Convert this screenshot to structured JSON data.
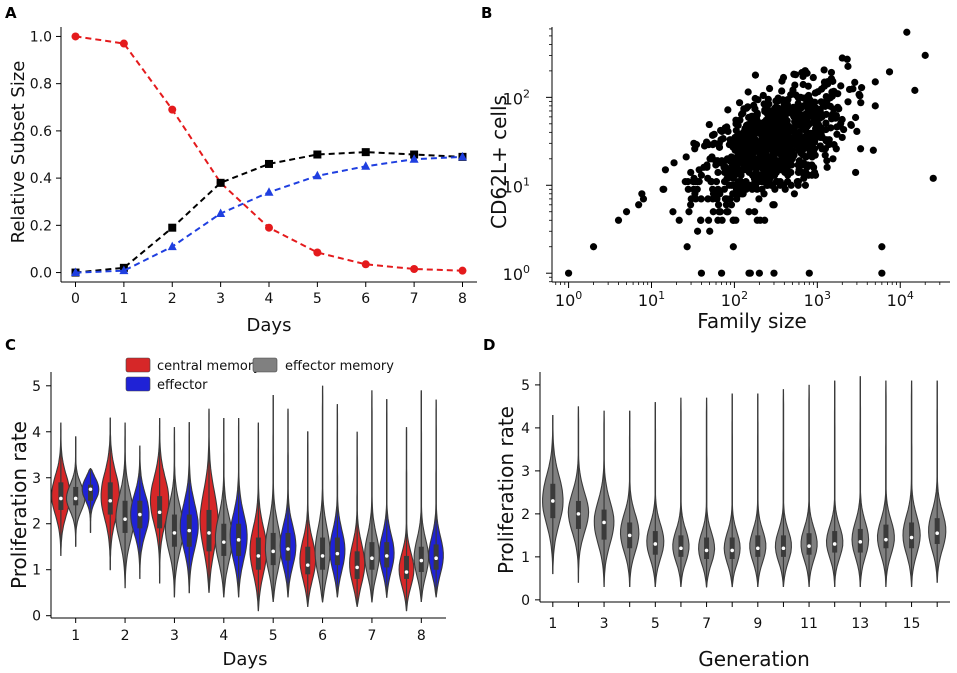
{
  "chart_data": [
    {
      "panel": "A",
      "type": "line",
      "xlabel": "Days",
      "ylabel": "Relative Subset Size",
      "x": [
        0,
        1,
        2,
        3,
        4,
        5,
        6,
        7,
        8
      ],
      "xticks": [
        "0",
        "1",
        "2",
        "3",
        "4",
        "5",
        "6",
        "7",
        "8"
      ],
      "yticks": [
        "0.0",
        "0.2",
        "0.4",
        "0.6",
        "0.8",
        "1.0"
      ],
      "xlim": [
        -0.3,
        8.3
      ],
      "ylim": [
        -0.04,
        1.04
      ],
      "series": [
        {
          "name": "central memory",
          "color": "#e41a1c",
          "marker": "circle",
          "values": [
            1.0,
            0.97,
            0.69,
            0.38,
            0.19,
            0.085,
            0.035,
            0.015,
            0.008
          ]
        },
        {
          "name": "effector memory",
          "color": "#000000",
          "marker": "square",
          "values": [
            0.0,
            0.02,
            0.19,
            0.38,
            0.46,
            0.5,
            0.51,
            0.5,
            0.49
          ]
        },
        {
          "name": "effector",
          "color": "#1f3fe0",
          "marker": "triangle",
          "values": [
            0.0,
            0.008,
            0.11,
            0.25,
            0.34,
            0.41,
            0.45,
            0.48,
            0.49
          ]
        }
      ]
    },
    {
      "panel": "B",
      "type": "scatter",
      "xlabel": "Family size",
      "ylabel": "CD62L+ cells",
      "xscale": "log",
      "yscale": "log",
      "xticks": [
        {
          "base": "10",
          "exp": "0"
        },
        {
          "base": "10",
          "exp": "1"
        },
        {
          "base": "10",
          "exp": "2"
        },
        {
          "base": "10",
          "exp": "3"
        },
        {
          "base": "10",
          "exp": "4"
        }
      ],
      "yticks": [
        {
          "base": "10",
          "exp": "0"
        },
        {
          "base": "10",
          "exp": "1"
        },
        {
          "base": "10",
          "exp": "2"
        }
      ],
      "xlim_log10": [
        -0.2,
        4.6
      ],
      "ylim_log10": [
        -0.1,
        2.8
      ],
      "color": "#000000",
      "cluster": {
        "n_points": 900,
        "center_log10": [
          2.45,
          1.45
        ],
        "spread_log10": [
          0.45,
          0.35
        ],
        "correlation": 0.55
      },
      "points": [
        [
          1,
          1
        ],
        [
          2,
          2
        ],
        [
          4,
          4
        ],
        [
          5,
          5
        ],
        [
          7,
          6
        ],
        [
          8,
          7
        ],
        [
          40,
          1
        ],
        [
          70,
          1
        ],
        [
          150,
          1
        ],
        [
          200,
          1
        ],
        [
          300,
          1
        ],
        [
          800,
          1
        ],
        [
          6000,
          1
        ],
        [
          6000,
          2
        ],
        [
          20000,
          300
        ],
        [
          12000,
          550
        ],
        [
          25000,
          12
        ],
        [
          15000,
          120
        ],
        [
          2000,
          280
        ],
        [
          5000,
          150
        ]
      ]
    },
    {
      "panel": "C",
      "type": "violin",
      "xlabel": "Days",
      "ylabel": "Proliferation rate",
      "categories": [
        "1",
        "2",
        "3",
        "4",
        "5",
        "6",
        "7",
        "8"
      ],
      "yticks": [
        "0",
        "1",
        "2",
        "3",
        "4",
        "5"
      ],
      "ylim": [
        -0.05,
        5.3
      ],
      "legend": [
        {
          "label": "central memory",
          "color": "#d62728"
        },
        {
          "label": "effector",
          "color": "#1f22d6"
        },
        {
          "label": "effector memory",
          "color": "#808080"
        }
      ],
      "series": [
        {
          "name": "central memory",
          "color": "#d62728",
          "min": [
            1.3,
            1.0,
            0.7,
            0.5,
            0.1,
            0.2,
            0.2,
            0.1
          ],
          "max": [
            4.2,
            4.3,
            4.3,
            4.5,
            4.2,
            4.0,
            4.0,
            4.1
          ],
          "q1": [
            2.3,
            2.2,
            1.9,
            1.4,
            1.0,
            0.9,
            0.8,
            0.8
          ],
          "median": [
            2.55,
            2.5,
            2.25,
            1.8,
            1.3,
            1.1,
            1.05,
            0.95
          ],
          "q3": [
            2.9,
            2.9,
            2.6,
            2.3,
            1.7,
            1.5,
            1.4,
            1.3
          ],
          "peak": [
            2.6,
            2.6,
            2.5,
            2.0,
            1.35,
            1.15,
            1.05,
            0.95
          ]
        },
        {
          "name": "effector memory",
          "color": "#808080",
          "min": [
            1.5,
            0.6,
            0.4,
            0.4,
            0.3,
            0.3,
            0.3,
            0.3
          ],
          "max": [
            3.9,
            4.2,
            4.1,
            4.3,
            4.8,
            5.0,
            4.9,
            4.9
          ],
          "q1": [
            2.4,
            1.8,
            1.5,
            1.3,
            1.1,
            1.0,
            1.0,
            0.95
          ],
          "median": [
            2.55,
            2.1,
            1.8,
            1.6,
            1.4,
            1.3,
            1.25,
            1.2
          ],
          "q3": [
            2.8,
            2.5,
            2.2,
            2.0,
            1.8,
            1.7,
            1.6,
            1.5
          ],
          "peak": [
            2.55,
            2.1,
            1.85,
            1.6,
            1.4,
            1.3,
            1.25,
            1.2
          ]
        },
        {
          "name": "effector",
          "color": "#1f22d6",
          "min": [
            1.8,
            0.8,
            0.5,
            0.4,
            0.4,
            0.4,
            0.4,
            0.4
          ],
          "max": [
            3.2,
            3.7,
            4.2,
            4.3,
            4.5,
            4.6,
            4.7,
            4.7
          ],
          "q1": [
            2.5,
            1.9,
            1.5,
            1.3,
            1.2,
            1.1,
            1.05,
            1.0
          ],
          "median": [
            2.75,
            2.2,
            1.85,
            1.65,
            1.45,
            1.35,
            1.3,
            1.25
          ],
          "q3": [
            2.85,
            2.5,
            2.2,
            2.0,
            1.8,
            1.7,
            1.6,
            1.55
          ],
          "peak": [
            2.8,
            2.2,
            1.9,
            1.65,
            1.45,
            1.35,
            1.3,
            1.25
          ]
        }
      ]
    },
    {
      "panel": "D",
      "type": "violin",
      "xlabel": "Generation",
      "ylabel": "Proliferation rate",
      "categories": [
        "1",
        "2",
        "3",
        "4",
        "5",
        "6",
        "7",
        "8",
        "9",
        "10",
        "11",
        "12",
        "13",
        "14",
        "15",
        "16"
      ],
      "xticks": [
        "1",
        "3",
        "5",
        "7",
        "9",
        "11",
        "13",
        "15"
      ],
      "yticks": [
        "0",
        "1",
        "2",
        "3",
        "4",
        "5"
      ],
      "ylim": [
        -0.05,
        5.3
      ],
      "color": "#808080",
      "min": [
        0.6,
        0.4,
        0.3,
        0.3,
        0.3,
        0.3,
        0.3,
        0.3,
        0.3,
        0.3,
        0.3,
        0.3,
        0.3,
        0.3,
        0.3,
        0.4
      ],
      "max": [
        4.3,
        4.5,
        4.4,
        4.4,
        4.6,
        4.7,
        4.7,
        4.8,
        4.8,
        4.9,
        5.0,
        5.1,
        5.2,
        5.1,
        5.1,
        5.1
      ],
      "q1": [
        1.9,
        1.65,
        1.4,
        1.2,
        1.05,
        1.0,
        0.95,
        0.95,
        1.0,
        1.0,
        1.05,
        1.1,
        1.1,
        1.2,
        1.2,
        1.3
      ],
      "median": [
        2.3,
        2.0,
        1.8,
        1.5,
        1.3,
        1.2,
        1.15,
        1.15,
        1.2,
        1.2,
        1.25,
        1.3,
        1.35,
        1.4,
        1.45,
        1.55
      ],
      "q3": [
        2.7,
        2.3,
        2.1,
        1.8,
        1.6,
        1.5,
        1.45,
        1.45,
        1.5,
        1.5,
        1.55,
        1.6,
        1.65,
        1.75,
        1.8,
        1.9
      ],
      "peak": [
        2.3,
        2.0,
        1.75,
        1.5,
        1.3,
        1.2,
        1.15,
        1.15,
        1.2,
        1.2,
        1.25,
        1.3,
        1.35,
        1.4,
        1.45,
        1.55
      ]
    }
  ],
  "panels": {
    "A": "A",
    "B": "B",
    "C": "C",
    "D": "D"
  }
}
